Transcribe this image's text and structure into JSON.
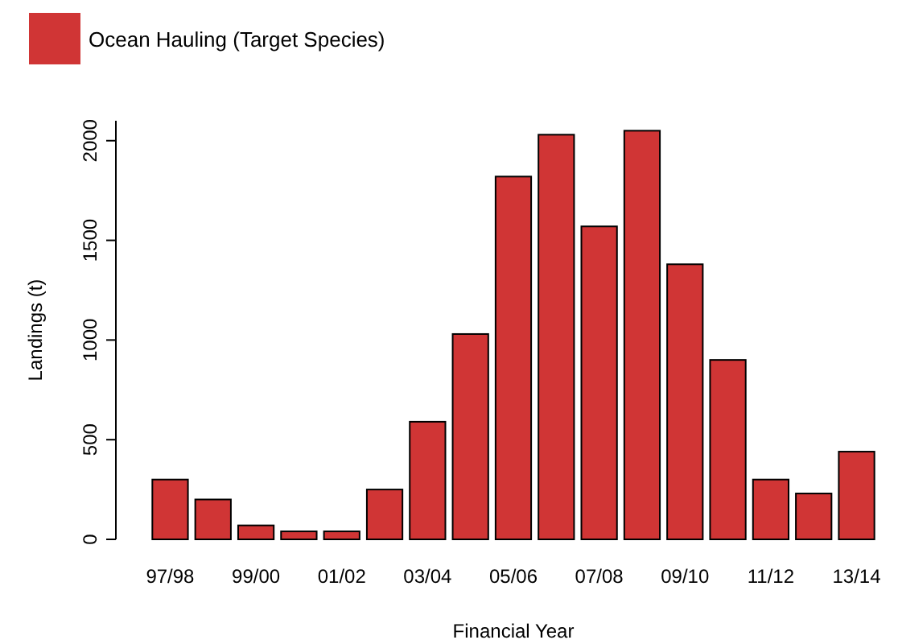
{
  "chart_data": {
    "type": "bar",
    "xlabel": "Financial Year",
    "ylabel": "Landings (t)",
    "categories": [
      "97/98",
      null,
      "99/00",
      null,
      "01/02",
      null,
      "03/04",
      null,
      "05/06",
      null,
      "07/08",
      null,
      "09/10",
      null,
      "11/12",
      null,
      "13/14"
    ],
    "series": [
      {
        "name": "Ocean Hauling (Target Species)",
        "color": "#d03535",
        "values": [
          300,
          200,
          70,
          40,
          40,
          250,
          590,
          1030,
          1820,
          2030,
          1570,
          2050,
          1380,
          900,
          300,
          230,
          440
        ]
      }
    ],
    "ylim": [
      0,
      2100
    ],
    "yticks": [
      0,
      500,
      1000,
      1500,
      2000
    ],
    "grid": false,
    "legend": "top left"
  }
}
